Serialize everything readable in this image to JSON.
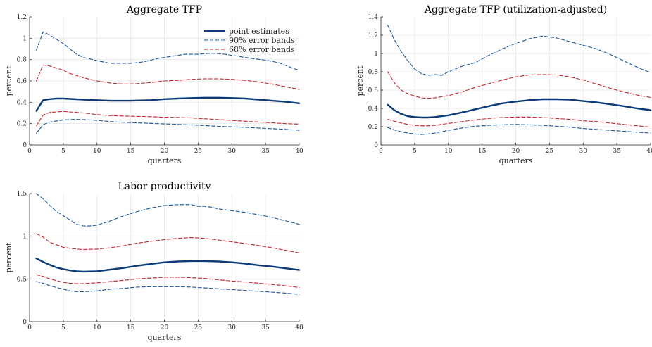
{
  "legend": {
    "entries": [
      {
        "label": "point estimates",
        "color": "#0b3b78",
        "dash": "none",
        "width": 2.4
      },
      {
        "label": "90% error bands",
        "color": "#1f5696",
        "dash": "5,3",
        "width": 1.1
      },
      {
        "label": "68% error bands",
        "color": "#c1272d",
        "dash": "5,3",
        "width": 1.1
      }
    ]
  },
  "chart_data": [
    {
      "type": "line",
      "title": "Aggregate TFP",
      "xlabel": "quarters",
      "ylabel": "percent",
      "xlim": [
        0,
        40
      ],
      "ylim": [
        0,
        1.2
      ],
      "xticks": [
        0,
        5,
        10,
        15,
        20,
        25,
        30,
        35,
        40
      ],
      "yticks": [
        0,
        0.2,
        0.4,
        0.6,
        0.8,
        1,
        1.2
      ],
      "ytick_labels": [
        "0",
        "0.2",
        "0.4",
        "0.6",
        "0.8",
        "1",
        "1.2"
      ],
      "grid": true,
      "legend_position": "top-right",
      "series": [
        {
          "name": "point estimates",
          "x": [
            1,
            2,
            3,
            4,
            5,
            6,
            8,
            10,
            12,
            15,
            18,
            20,
            22,
            24,
            26,
            28,
            30,
            32,
            34,
            36,
            38,
            40
          ],
          "y": [
            0.32,
            0.42,
            0.43,
            0.435,
            0.435,
            0.432,
            0.425,
            0.42,
            0.415,
            0.415,
            0.42,
            0.43,
            0.435,
            0.44,
            0.443,
            0.443,
            0.44,
            0.435,
            0.425,
            0.415,
            0.405,
            0.39
          ]
        },
        {
          "name": "90% error bands",
          "x": [
            1,
            2,
            3,
            4,
            5,
            6,
            7,
            8,
            10,
            12,
            14,
            15,
            17,
            19,
            21,
            23,
            25,
            27,
            29,
            31,
            33,
            35,
            37,
            39,
            40
          ],
          "y": [
            0.89,
            1.06,
            1.03,
            0.99,
            0.95,
            0.9,
            0.85,
            0.82,
            0.79,
            0.765,
            0.765,
            0.765,
            0.78,
            0.81,
            0.83,
            0.85,
            0.85,
            0.86,
            0.85,
            0.83,
            0.81,
            0.795,
            0.77,
            0.72,
            0.7
          ]
        },
        {
          "name": "",
          "x": [
            1,
            2,
            3,
            5,
            7,
            9,
            11,
            13,
            15,
            17,
            19,
            21,
            23,
            25,
            27,
            29,
            31,
            33,
            35,
            37,
            39,
            40
          ],
          "y": [
            0.11,
            0.19,
            0.215,
            0.235,
            0.24,
            0.235,
            0.225,
            0.215,
            0.21,
            0.205,
            0.2,
            0.195,
            0.19,
            0.185,
            0.178,
            0.172,
            0.168,
            0.162,
            0.155,
            0.15,
            0.142,
            0.138
          ]
        },
        {
          "name": "68% error bands",
          "x": [
            1,
            2,
            3,
            4,
            5,
            6,
            8,
            10,
            12,
            14,
            16,
            18,
            20,
            22,
            24,
            26,
            28,
            30,
            32,
            34,
            36,
            38,
            40
          ],
          "y": [
            0.6,
            0.75,
            0.74,
            0.72,
            0.7,
            0.67,
            0.63,
            0.6,
            0.58,
            0.57,
            0.575,
            0.585,
            0.6,
            0.605,
            0.615,
            0.62,
            0.62,
            0.615,
            0.605,
            0.59,
            0.57,
            0.545,
            0.52
          ]
        },
        {
          "name": "",
          "x": [
            1,
            2,
            3,
            4,
            5,
            6,
            8,
            10,
            12,
            15,
            18,
            20,
            22,
            24,
            26,
            28,
            30,
            32,
            34,
            36,
            38,
            40
          ],
          "y": [
            0.18,
            0.28,
            0.305,
            0.31,
            0.315,
            0.31,
            0.3,
            0.285,
            0.275,
            0.27,
            0.265,
            0.26,
            0.258,
            0.253,
            0.245,
            0.238,
            0.23,
            0.222,
            0.215,
            0.208,
            0.2,
            0.195
          ]
        }
      ]
    },
    {
      "type": "line",
      "title": "Aggregate TFP (utilization-adjusted)",
      "xlabel": "quarters",
      "ylabel": "percent",
      "xlim": [
        0,
        40
      ],
      "ylim": [
        0,
        1.4
      ],
      "xticks": [
        0,
        5,
        10,
        15,
        20,
        25,
        30,
        35,
        40
      ],
      "yticks": [
        0,
        0.2,
        0.4,
        0.6,
        0.8,
        1,
        1.2,
        1.4
      ],
      "ytick_labels": [
        "0",
        "0.2",
        "0.4",
        "0.6",
        "0.8",
        "1",
        "1.2",
        "1.4"
      ],
      "grid": true,
      "series": [
        {
          "name": "point estimates",
          "x": [
            1,
            2,
            3,
            4,
            5,
            6,
            7,
            8,
            10,
            12,
            14,
            16,
            18,
            20,
            22,
            24,
            26,
            28,
            30,
            32,
            34,
            36,
            38,
            40
          ],
          "y": [
            0.44,
            0.38,
            0.34,
            0.315,
            0.305,
            0.3,
            0.3,
            0.305,
            0.325,
            0.355,
            0.39,
            0.425,
            0.455,
            0.475,
            0.49,
            0.5,
            0.5,
            0.495,
            0.48,
            0.465,
            0.445,
            0.425,
            0.4,
            0.38
          ]
        },
        {
          "name": "90% error bands",
          "x": [
            1,
            2,
            3,
            4,
            5,
            6,
            7,
            8,
            9,
            10,
            12,
            14,
            16,
            18,
            20,
            22,
            24,
            26,
            28,
            30,
            32,
            34,
            36,
            38,
            40
          ],
          "y": [
            1.31,
            1.15,
            1.02,
            0.92,
            0.83,
            0.78,
            0.76,
            0.77,
            0.76,
            0.8,
            0.86,
            0.9,
            0.98,
            1.05,
            1.11,
            1.16,
            1.19,
            1.17,
            1.13,
            1.09,
            1.05,
            0.99,
            0.92,
            0.85,
            0.79
          ]
        },
        {
          "name": "",
          "x": [
            1,
            2,
            3,
            4,
            5,
            6,
            7,
            8,
            10,
            12,
            14,
            16,
            18,
            20,
            22,
            24,
            26,
            28,
            30,
            32,
            34,
            36,
            38,
            40
          ],
          "y": [
            0.19,
            0.165,
            0.145,
            0.13,
            0.12,
            0.115,
            0.12,
            0.13,
            0.16,
            0.185,
            0.205,
            0.215,
            0.22,
            0.225,
            0.22,
            0.215,
            0.205,
            0.195,
            0.18,
            0.17,
            0.16,
            0.15,
            0.14,
            0.13
          ]
        },
        {
          "name": "68% error bands",
          "x": [
            1,
            2,
            3,
            4,
            5,
            6,
            7,
            8,
            10,
            12,
            14,
            16,
            18,
            20,
            22,
            24,
            26,
            28,
            30,
            32,
            34,
            36,
            38,
            40
          ],
          "y": [
            0.8,
            0.68,
            0.6,
            0.56,
            0.535,
            0.515,
            0.51,
            0.515,
            0.54,
            0.58,
            0.63,
            0.67,
            0.71,
            0.745,
            0.765,
            0.77,
            0.765,
            0.745,
            0.71,
            0.665,
            0.62,
            0.58,
            0.545,
            0.52
          ]
        },
        {
          "name": "",
          "x": [
            1,
            2,
            3,
            4,
            5,
            6,
            7,
            8,
            10,
            12,
            14,
            16,
            18,
            20,
            22,
            24,
            26,
            28,
            30,
            32,
            34,
            36,
            38,
            40
          ],
          "y": [
            0.28,
            0.26,
            0.24,
            0.225,
            0.215,
            0.21,
            0.21,
            0.215,
            0.235,
            0.255,
            0.275,
            0.29,
            0.3,
            0.305,
            0.305,
            0.3,
            0.29,
            0.28,
            0.265,
            0.255,
            0.24,
            0.225,
            0.21,
            0.195
          ]
        }
      ]
    },
    {
      "type": "line",
      "title": "Labor productivity",
      "xlabel": "quarters",
      "ylabel": "percent",
      "xlim": [
        0,
        40
      ],
      "ylim": [
        0,
        1.5
      ],
      "xticks": [
        0,
        5,
        10,
        15,
        20,
        25,
        30,
        35,
        40
      ],
      "yticks": [
        0,
        0.5,
        1,
        1.5
      ],
      "ytick_labels": [
        "0",
        "0.5",
        "1",
        "1.5"
      ],
      "grid": true,
      "series": [
        {
          "name": "point estimates",
          "x": [
            1,
            2,
            3,
            4,
            5,
            6,
            7,
            8,
            10,
            12,
            14,
            16,
            18,
            20,
            22,
            24,
            26,
            28,
            30,
            32,
            34,
            36,
            38,
            40
          ],
          "y": [
            0.74,
            0.7,
            0.665,
            0.635,
            0.615,
            0.6,
            0.59,
            0.585,
            0.59,
            0.61,
            0.63,
            0.655,
            0.675,
            0.695,
            0.705,
            0.71,
            0.71,
            0.705,
            0.695,
            0.68,
            0.66,
            0.645,
            0.625,
            0.605
          ]
        },
        {
          "name": "90% error bands",
          "x": [
            1,
            2,
            3,
            4,
            5,
            6,
            7,
            8,
            9,
            10,
            12,
            14,
            16,
            18,
            20,
            22,
            24,
            25,
            26,
            27,
            28,
            30,
            32,
            34,
            36,
            38,
            40
          ],
          "y": [
            1.5,
            1.44,
            1.36,
            1.29,
            1.24,
            1.19,
            1.14,
            1.12,
            1.12,
            1.13,
            1.18,
            1.24,
            1.29,
            1.33,
            1.36,
            1.37,
            1.37,
            1.35,
            1.35,
            1.34,
            1.32,
            1.3,
            1.28,
            1.25,
            1.22,
            1.18,
            1.14
          ]
        },
        {
          "name": "",
          "x": [
            1,
            2,
            3,
            4,
            5,
            6,
            7,
            8,
            10,
            12,
            14,
            16,
            18,
            20,
            22,
            24,
            26,
            28,
            30,
            32,
            34,
            36,
            38,
            40
          ],
          "y": [
            0.47,
            0.45,
            0.42,
            0.4,
            0.38,
            0.36,
            0.35,
            0.35,
            0.36,
            0.38,
            0.39,
            0.405,
            0.41,
            0.41,
            0.41,
            0.405,
            0.395,
            0.385,
            0.375,
            0.365,
            0.355,
            0.345,
            0.335,
            0.32
          ]
        },
        {
          "name": "68% error bands",
          "x": [
            1,
            2,
            3,
            4,
            5,
            6,
            7,
            8,
            10,
            12,
            14,
            16,
            18,
            20,
            22,
            24,
            26,
            28,
            30,
            32,
            34,
            36,
            38,
            40
          ],
          "y": [
            1.03,
            0.99,
            0.93,
            0.9,
            0.87,
            0.86,
            0.85,
            0.845,
            0.85,
            0.865,
            0.89,
            0.92,
            0.94,
            0.96,
            0.975,
            0.985,
            0.975,
            0.955,
            0.935,
            0.915,
            0.89,
            0.865,
            0.835,
            0.805
          ]
        },
        {
          "name": "",
          "x": [
            1,
            2,
            3,
            4,
            5,
            6,
            7,
            8,
            10,
            12,
            14,
            16,
            18,
            20,
            22,
            24,
            26,
            28,
            30,
            32,
            34,
            36,
            38,
            40
          ],
          "y": [
            0.55,
            0.53,
            0.5,
            0.48,
            0.46,
            0.45,
            0.445,
            0.445,
            0.455,
            0.47,
            0.485,
            0.5,
            0.51,
            0.52,
            0.52,
            0.515,
            0.505,
            0.49,
            0.475,
            0.465,
            0.45,
            0.435,
            0.42,
            0.4
          ]
        }
      ]
    }
  ]
}
